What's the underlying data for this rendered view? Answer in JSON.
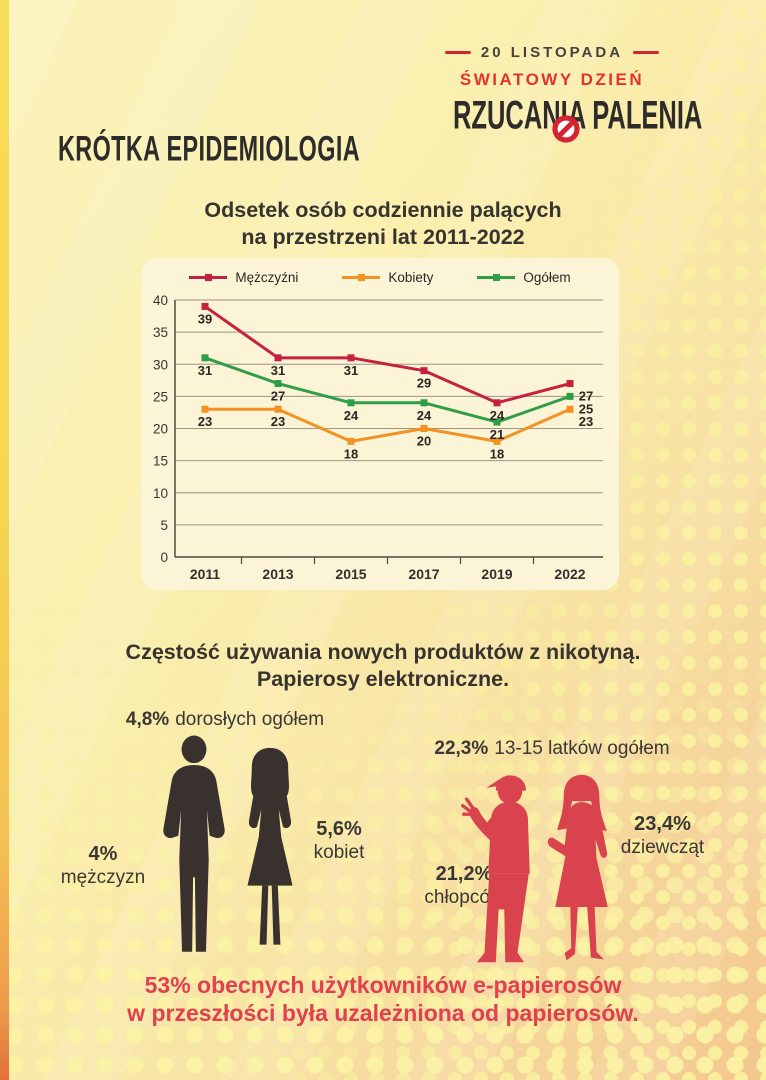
{
  "logo": {
    "date": "20 LISTOPADA",
    "subtitle": "ŚWIATOWY DZIEŃ",
    "title": "RZUCANIA PALENIA",
    "no_smoking_icon_color": "#D5232F"
  },
  "section1": {
    "heading": "KRÓTKA EPIDEMIOLOGIA",
    "chart_title_line1": "Odsetek osób codziennie palących",
    "chart_title_line2": "na przestrzeni lat 2011-2022"
  },
  "chart_data": {
    "type": "line",
    "title": "Odsetek osób codziennie palących na przestrzeni lat 2011-2022",
    "categories": [
      "2011",
      "2013",
      "2015",
      "2017",
      "2019",
      "2022"
    ],
    "series": [
      {
        "name": "Mężczyźni",
        "color": "#C42240",
        "values": [
          39,
          31,
          31,
          29,
          24,
          27
        ]
      },
      {
        "name": "Kobiety",
        "color": "#F29222",
        "values": [
          23,
          23,
          18,
          20,
          18,
          23
        ]
      },
      {
        "name": "Ogółem",
        "color": "#2F9E49",
        "values": [
          31,
          27,
          24,
          24,
          21,
          25
        ]
      }
    ],
    "ylim": [
      0,
      40
    ],
    "ytick_step": 5,
    "grid": true,
    "legend_position": "top",
    "panel_bg": "#FBF4D6",
    "value_labels": true
  },
  "section2": {
    "title_line1": "Częstość używania nowych produktów z nikotyną.",
    "title_line2": "Papierosy elektroniczne.",
    "adults": {
      "total_value": "4,8%",
      "total_label": "dorosłych ogółem",
      "men_value": "4%",
      "men_label": "mężczyzn",
      "women_value": "5,6%",
      "women_label": "kobiet"
    },
    "teens": {
      "total_value": "22,3%",
      "total_label": "13-15 latków ogółem",
      "boys_value": "21,2%",
      "boys_label": "chłopców",
      "girls_value": "23,4%",
      "girls_label": "dziewcząt"
    },
    "footnote_line1": "53% obecnych użytkowników e-papierosów",
    "footnote_line2": "w przeszłości była uzależniona od papierosów."
  },
  "colors": {
    "accent_red": "#D9434E",
    "footnote_red": "#E0404F",
    "dark_text": "#37332F",
    "silhouette_dark": "#39312E",
    "page_bg_top": "#FBF3BC",
    "page_bg_bottom": "#F3C78E"
  }
}
